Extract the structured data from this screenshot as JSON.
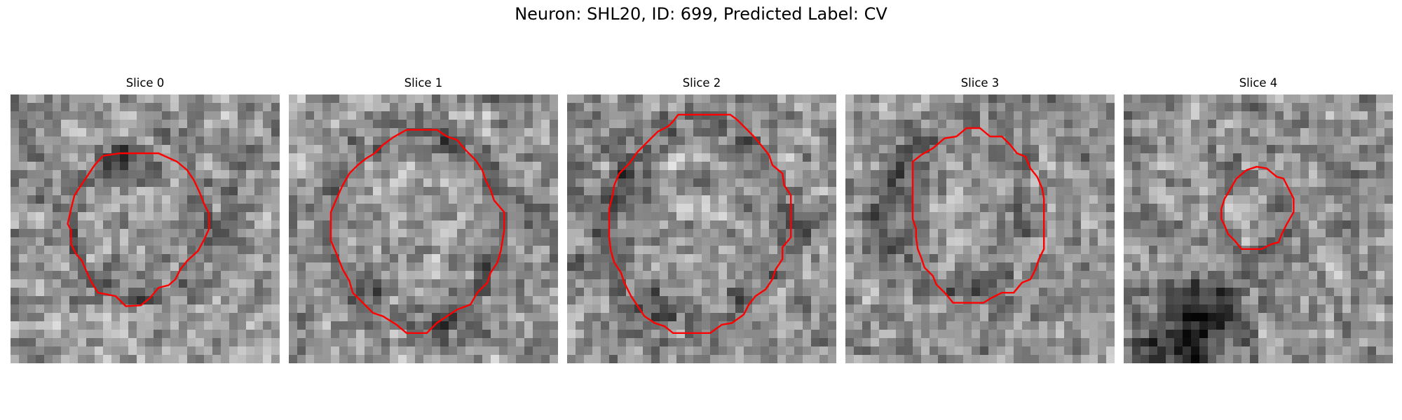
{
  "figure": {
    "title": "Neuron: SHL20, ID: 699, Predicted Label: CV"
  },
  "slices": [
    {
      "title": "Slice 0"
    },
    {
      "title": "Slice 1"
    },
    {
      "title": "Slice 2"
    },
    {
      "title": "Slice 3"
    },
    {
      "title": "Slice 4"
    }
  ],
  "colors": {
    "contour": "#ff0000",
    "background": "#ffffff"
  }
}
